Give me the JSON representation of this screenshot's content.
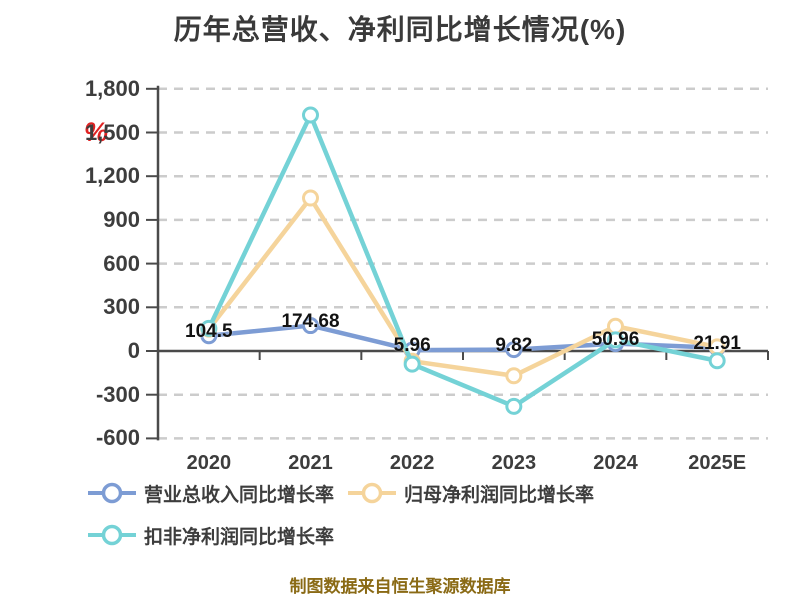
{
  "page": {
    "caption": "制图数据来自恒生聚源数据库",
    "caption_color": "#8a6a15",
    "background_color": "#ffffff",
    "title_color": "#3a3a3a"
  },
  "chart_data": {
    "type": "line",
    "title": "历年总营收、净利同比增长情况(%)",
    "categories": [
      "2020",
      "2021",
      "2022",
      "2023",
      "2024",
      "2025E"
    ],
    "series": [
      {
        "name": "营业总收入同比增长率",
        "color": "#7d9cd4",
        "values": [
          104.5,
          174.68,
          5.96,
          9.82,
          50.96,
          21.91
        ],
        "labels": [
          "104.5",
          "174.68",
          "5.96",
          "9.82",
          "50.96",
          "21.91"
        ],
        "labeled": true
      },
      {
        "name": "归母净利润同比增长率",
        "color": "#f5d49b",
        "values": [
          150,
          1050,
          -70,
          -170,
          170,
          28
        ],
        "labeled": false
      },
      {
        "name": "扣非净利润同比增长率",
        "color": "#74d2d6",
        "values": [
          155,
          1620,
          -90,
          -380,
          76,
          -67
        ],
        "labeled": false
      }
    ],
    "y_axis": {
      "min": -600,
      "max": 1800,
      "step": 300,
      "tick_labels": [
        "1,800",
        "1,500",
        "1,200",
        "900",
        "600",
        "300",
        "0",
        "-300",
        "-600"
      ],
      "unit": "%",
      "unit_color": "#e02222"
    },
    "grid": "dashed horizontal gridlines, solid zero axis",
    "legend_position": "bottom-left two rows",
    "marker_style": "white-filled circles with colored ring"
  }
}
